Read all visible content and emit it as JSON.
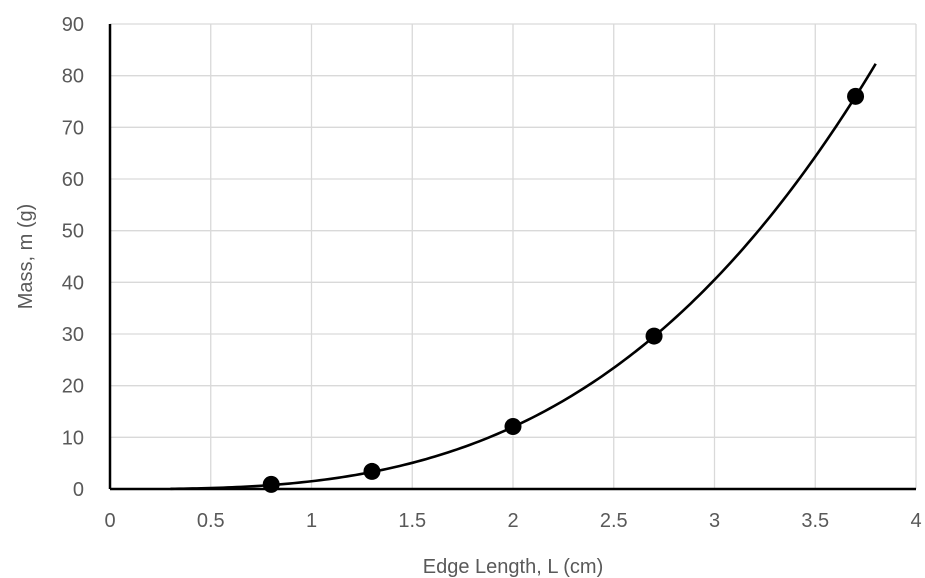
{
  "chart_data": {
    "type": "scatter",
    "title": "",
    "xlabel": "Edge Length, L (cm)",
    "ylabel": "Mass, m (g)",
    "xlim": [
      0,
      4
    ],
    "ylim": [
      0,
      90
    ],
    "x_ticks": [
      0,
      0.5,
      1,
      1.5,
      2,
      2.5,
      3,
      3.5,
      4
    ],
    "x_tick_labels": [
      "0",
      "0.5",
      "1",
      "1.5",
      "2",
      "2.5",
      "3",
      "3.5",
      "4"
    ],
    "y_ticks": [
      0,
      10,
      20,
      30,
      40,
      50,
      60,
      70,
      80,
      90
    ],
    "y_tick_labels": [
      "0",
      "10",
      "20",
      "30",
      "40",
      "50",
      "60",
      "70",
      "80",
      "90"
    ],
    "grid": true,
    "legend": "none",
    "series": [
      {
        "x": [
          0.8,
          1.3,
          2.0,
          2.7,
          3.7
        ],
        "y": [
          0.9,
          3.4,
          12.1,
          29.6,
          76.0
        ],
        "marker": "circle",
        "color": "#000000"
      }
    ],
    "trendline": {
      "type": "power",
      "coefficient": 1.5,
      "exponent": 3,
      "x_range": [
        0.3,
        3.8
      ],
      "color": "#000000"
    }
  }
}
